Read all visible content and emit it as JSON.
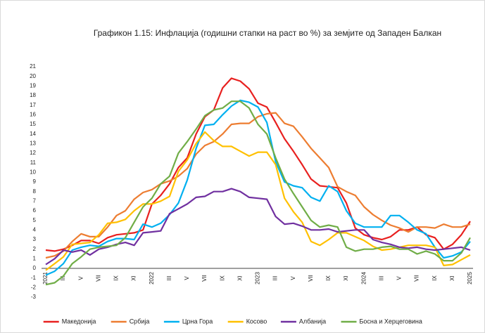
{
  "chart_data": {
    "type": "line",
    "title": "Графикон 1.15: Инфлација (годишни стапки на раст во %) за земјите од Западен Балкан",
    "categories": [
      "2021",
      null,
      "III",
      null,
      "V",
      null,
      "VII",
      null,
      "IX",
      null,
      "XI",
      null,
      "2022",
      null,
      "III",
      null,
      "V",
      null,
      "VII",
      null,
      "IX",
      null,
      "XI",
      null,
      "2023",
      null,
      "III",
      null,
      "V",
      null,
      "VII",
      null,
      "IX",
      null,
      "XI",
      null,
      "2024",
      null,
      "III",
      null,
      "V",
      null,
      "VII",
      null,
      "IX",
      null,
      "XI",
      null,
      "2025"
    ],
    "ylim": [
      -3,
      21
    ],
    "yticks": [
      -3,
      -2,
      -1,
      0,
      1,
      2,
      3,
      4,
      5,
      6,
      7,
      8,
      9,
      10,
      11,
      12,
      13,
      14,
      15,
      16,
      17,
      18,
      19,
      20,
      21
    ],
    "grid": false,
    "series": [
      {
        "name": "Македонија",
        "color": "#e8201f",
        "values": [
          1.9,
          1.8,
          2.0,
          2.4,
          2.9,
          2.9,
          2.6,
          3.2,
          3.5,
          3.6,
          3.7,
          4.0,
          6.7,
          7.6,
          8.8,
          10.5,
          11.5,
          14.0,
          15.8,
          16.5,
          18.8,
          19.8,
          19.5,
          18.7,
          17.2,
          16.8,
          15.2,
          13.5,
          12.2,
          10.8,
          9.3,
          8.6,
          8.5,
          8.4,
          6.8,
          4.2,
          3.5,
          3.2,
          3.0,
          3.3,
          4.0,
          4.0,
          4.3,
          3.5,
          3.2,
          2.0,
          2.5,
          3.5,
          4.9
        ]
      },
      {
        "name": "Србија",
        "color": "#ed7d31",
        "values": [
          1.1,
          1.3,
          1.8,
          2.8,
          3.6,
          3.3,
          3.3,
          4.3,
          5.5,
          6.0,
          7.2,
          7.9,
          8.2,
          8.8,
          9.1,
          9.6,
          10.4,
          11.9,
          12.8,
          13.2,
          14.0,
          15.0,
          15.1,
          15.1,
          15.8,
          16.1,
          16.2,
          15.1,
          14.8,
          13.7,
          12.5,
          11.5,
          10.5,
          8.5,
          8.0,
          7.6,
          6.4,
          5.6,
          5.0,
          4.5,
          4.2,
          3.8,
          4.3,
          4.3,
          4.2,
          4.6,
          4.3,
          4.3,
          4.6
        ]
      },
      {
        "name": "Црна Гора",
        "color": "#00b0f0",
        "values": [
          -0.7,
          -0.3,
          0.5,
          1.9,
          2.2,
          2.4,
          2.3,
          2.8,
          3.1,
          3.1,
          3.0,
          4.6,
          4.3,
          4.7,
          5.6,
          6.8,
          9.2,
          12.5,
          14.9,
          15.0,
          16.0,
          16.9,
          17.5,
          17.3,
          16.8,
          15.2,
          11.1,
          9.0,
          8.6,
          8.4,
          7.4,
          7.0,
          8.6,
          8.0,
          6.0,
          4.7,
          4.3,
          4.3,
          4.3,
          5.5,
          5.5,
          4.8,
          4.0,
          3.6,
          2.2,
          1.1,
          1.3,
          1.7,
          2.8
        ]
      },
      {
        "name": "Косово",
        "color": "#ffc000",
        "values": [
          -0.2,
          0.5,
          1.2,
          2.5,
          2.6,
          2.7,
          3.5,
          4.7,
          4.8,
          5.1,
          6.0,
          6.7,
          6.7,
          7.0,
          7.5,
          10.1,
          11.3,
          13.0,
          14.2,
          13.3,
          12.7,
          12.7,
          12.2,
          11.7,
          12.1,
          12.1,
          10.8,
          7.3,
          5.9,
          4.8,
          2.8,
          2.4,
          3.0,
          3.7,
          3.7,
          3.3,
          2.9,
          2.3,
          1.9,
          2.0,
          2.2,
          2.4,
          2.4,
          2.4,
          2.2,
          0.3,
          0.4,
          0.9,
          1.4
        ]
      },
      {
        "name": "Албанија",
        "color": "#7030a0",
        "values": [
          0.4,
          1.0,
          1.9,
          1.7,
          1.9,
          1.4,
          2.0,
          2.2,
          2.5,
          2.7,
          2.4,
          3.7,
          3.8,
          3.9,
          5.7,
          6.2,
          6.7,
          7.4,
          7.5,
          8.0,
          8.0,
          8.3,
          8.0,
          7.4,
          7.3,
          7.2,
          5.4,
          4.6,
          4.7,
          4.4,
          4.0,
          4.0,
          4.1,
          3.8,
          3.9,
          4.0,
          4.0,
          3.0,
          2.7,
          2.5,
          2.2,
          2.1,
          2.2,
          2.0,
          1.9,
          2.0,
          2.1,
          2.2,
          1.9
        ]
      },
      {
        "name": "Босна и Херцеговина",
        "color": "#70ad47",
        "values": [
          -1.7,
          -1.5,
          -0.8,
          0.5,
          1.2,
          2.0,
          2.2,
          2.3,
          2.4,
          3.2,
          4.8,
          6.4,
          7.3,
          8.8,
          9.6,
          12.0,
          13.2,
          14.5,
          15.9,
          16.5,
          16.7,
          17.4,
          17.4,
          16.7,
          15.0,
          14.0,
          11.5,
          9.3,
          7.8,
          6.4,
          5.0,
          4.3,
          4.5,
          4.3,
          2.2,
          1.8,
          2.0,
          2.0,
          2.2,
          2.3,
          2.0,
          2.0,
          1.5,
          1.8,
          1.5,
          0.8,
          0.8,
          1.6,
          3.2
        ]
      }
    ]
  }
}
